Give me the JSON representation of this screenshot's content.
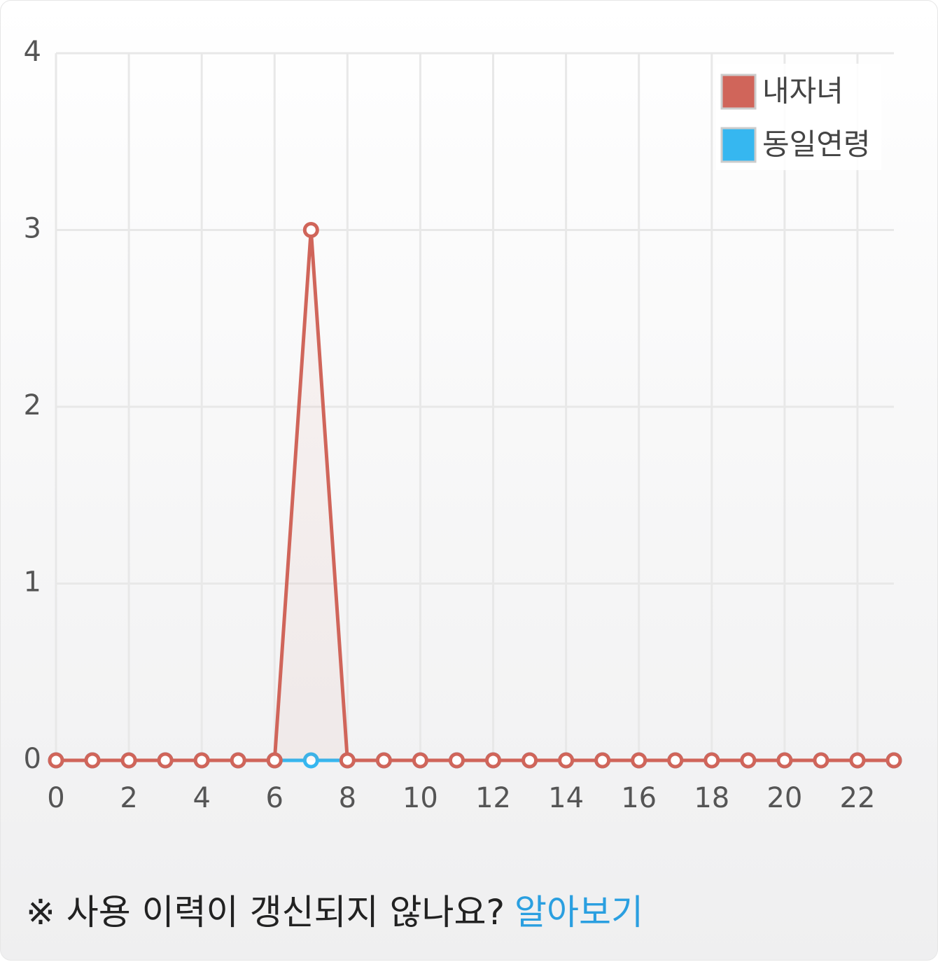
{
  "chart_data": {
    "type": "line",
    "x": [
      0,
      1,
      2,
      3,
      4,
      5,
      6,
      7,
      8,
      9,
      10,
      11,
      12,
      13,
      14,
      15,
      16,
      17,
      18,
      19,
      20,
      21,
      22,
      23
    ],
    "series": [
      {
        "name": "내자녀",
        "color": "#d0655a",
        "values": [
          0,
          0,
          0,
          0,
          0,
          0,
          0,
          3,
          0,
          0,
          0,
          0,
          0,
          0,
          0,
          0,
          0,
          0,
          0,
          0,
          0,
          0,
          0,
          0
        ]
      },
      {
        "name": "동일연령",
        "color": "#36b7f0",
        "values": [
          0,
          0,
          0,
          0,
          0,
          0,
          0,
          0,
          0,
          0,
          0,
          0,
          0,
          0,
          0,
          0,
          0,
          0,
          0,
          0,
          0,
          0,
          0,
          0
        ]
      }
    ],
    "xlim": [
      0,
      23
    ],
    "xticks": [
      0,
      2,
      4,
      6,
      8,
      10,
      12,
      14,
      16,
      18,
      20,
      22
    ],
    "ylim": [
      0,
      4
    ],
    "yticks": [
      0,
      1,
      2,
      3,
      4
    ],
    "grid": true,
    "legend": "top-right"
  },
  "footer": {
    "note": "※ 사용 이력이 갱신되지 않나요?",
    "link": "알아보기"
  }
}
